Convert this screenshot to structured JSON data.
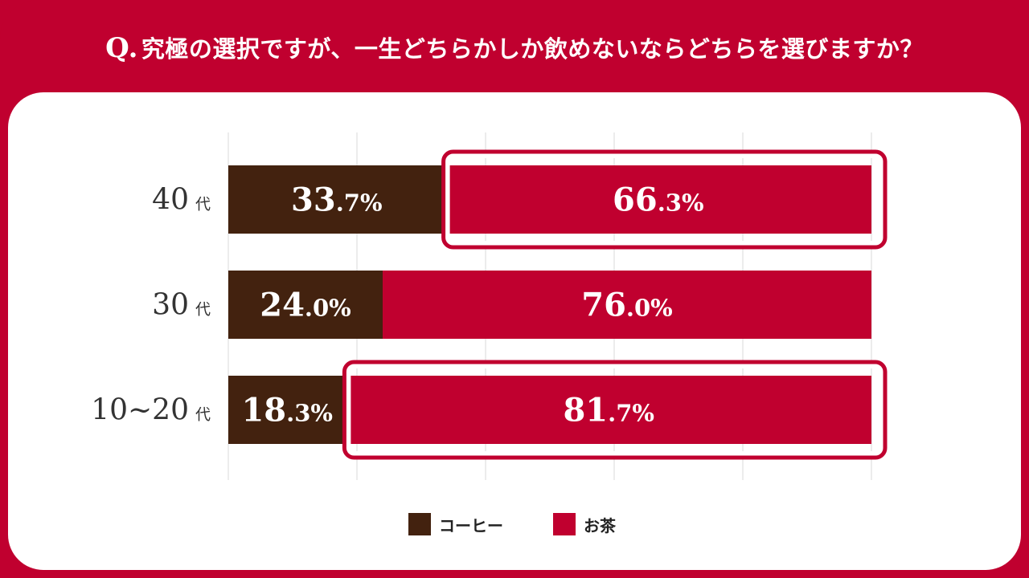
{
  "question": {
    "prefix": "Q.",
    "text": "究極の選択ですが、一生どちらかしか飲めないならどちらを選びますか？"
  },
  "colors": {
    "coffee": "#43220f",
    "tea": "#c0002f",
    "grid": "#d8d8d8"
  },
  "chart_data": {
    "type": "bar",
    "orientation": "horizontal",
    "stacked": true,
    "categories": [
      "40代",
      "30代",
      "10~20代"
    ],
    "series": [
      {
        "name": "コーヒー",
        "values": [
          33.7,
          24.0,
          18.3
        ]
      },
      {
        "name": "お茶",
        "values": [
          66.3,
          76.0,
          81.7
        ]
      }
    ],
    "value_labels": [
      [
        "33.7%",
        "66.3%"
      ],
      [
        "24.0%",
        "76.0%"
      ],
      [
        "18.3%",
        "81.7%"
      ]
    ],
    "highlighted": [
      {
        "category": "40代",
        "series": "お茶"
      },
      {
        "category": "10~20代",
        "series": "お茶"
      }
    ],
    "xlim": [
      0,
      100
    ],
    "grid": true,
    "legend": "bottom-center"
  },
  "legend": {
    "coffee_label": "コーヒー",
    "tea_label": "お茶"
  }
}
